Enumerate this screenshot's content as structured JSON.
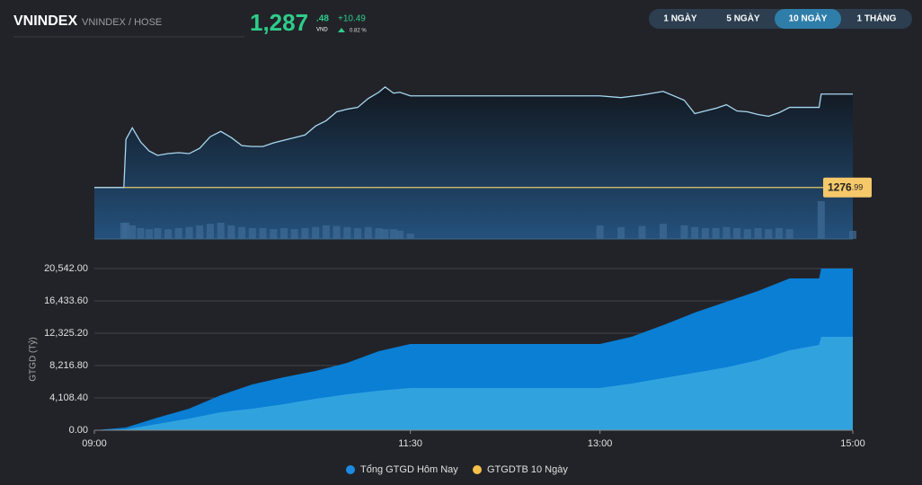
{
  "header": {
    "symbol": "VNINDEX",
    "exchange": "VNINDEX / HOSE",
    "price_int": "1,287",
    "price_dec": ".48",
    "currency": "VND",
    "change": "+10.49",
    "change_pct": "0.82 %"
  },
  "tabs": [
    "1 NGÀY",
    "5 NGÀY",
    "10 NGÀY",
    "1 THÁNG"
  ],
  "active_tab": 2,
  "chart_data": [
    {
      "type": "line",
      "xlim": [
        "09:00",
        "15:00"
      ],
      "ylim": [
        1271.2,
        1290.0
      ],
      "reference": 1276.99,
      "reference_label_parts": [
        "1276",
        ".99"
      ],
      "reference_color": "#e8c86a",
      "x": [
        "09:14",
        "09:15",
        "09:18",
        "09:22",
        "09:26",
        "09:30",
        "09:35",
        "09:40",
        "09:45",
        "09:50",
        "09:55",
        "10:00",
        "10:05",
        "10:10",
        "10:15",
        "10:20",
        "10:25",
        "10:30",
        "10:35",
        "10:40",
        "10:45",
        "10:50",
        "10:55",
        "11:00",
        "11:05",
        "11:10",
        "11:15",
        "11:18",
        "11:22",
        "11:25",
        "11:30",
        "13:00",
        "13:10",
        "13:20",
        "13:30",
        "13:40",
        "13:45",
        "13:50",
        "13:55",
        "14:00",
        "14:05",
        "14:10",
        "14:15",
        "14:20",
        "14:25",
        "14:30",
        "14:44",
        "14:45",
        "15:00"
      ],
      "series": [
        {
          "color": "#a8d8f0",
          "values": [
            1276.99,
            1282.4,
            1283.7,
            1282.1,
            1281.1,
            1280.6,
            1280.8,
            1280.9,
            1280.8,
            1281.4,
            1282.7,
            1283.3,
            1282.6,
            1281.7,
            1281.6,
            1281.6,
            1282.0,
            1282.3,
            1282.6,
            1282.9,
            1283.9,
            1284.5,
            1285.5,
            1285.8,
            1286.0,
            1287.0,
            1287.7,
            1288.3,
            1287.6,
            1287.7,
            1287.3,
            1287.3,
            1287.1,
            1287.4,
            1287.8,
            1286.8,
            1285.3,
            1285.6,
            1285.9,
            1286.3,
            1285.6,
            1285.5,
            1285.2,
            1285.0,
            1285.4,
            1286.0,
            1286.0,
            1287.5,
            1287.5
          ]
        }
      ],
      "volume": {
        "color": "#3d6a94",
        "ylim": [
          0,
          100
        ],
        "values": [
          30,
          30,
          25,
          20,
          18,
          20,
          18,
          20,
          22,
          25,
          28,
          30,
          25,
          22,
          20,
          20,
          18,
          20,
          18,
          20,
          22,
          25,
          24,
          22,
          20,
          22,
          20,
          18,
          18,
          15,
          10,
          25,
          22,
          24,
          28,
          25,
          22,
          20,
          20,
          22,
          20,
          18,
          20,
          18,
          20,
          18,
          0,
          70,
          15
        ]
      }
    },
    {
      "type": "area",
      "ylabel": "GTGD (Tỷ)",
      "xlim": [
        "09:00",
        "15:00"
      ],
      "xticks": [
        "09:00",
        "11:30",
        "13:00",
        "15:00"
      ],
      "ylim": [
        0,
        20542
      ],
      "yticks": [
        {
          "value": 0,
          "label": "0.00"
        },
        {
          "value": 4108.4,
          "label": "4,108.40"
        },
        {
          "value": 8216.8,
          "label": "8,216.80"
        },
        {
          "value": 12325.2,
          "label": "12,325.20"
        },
        {
          "value": 16433.6,
          "label": "16,433.60"
        },
        {
          "value": 20542,
          "label": "20,542.00"
        }
      ],
      "grid": true,
      "x": [
        "09:00",
        "09:15",
        "09:30",
        "09:45",
        "10:00",
        "10:15",
        "10:30",
        "10:45",
        "11:00",
        "11:15",
        "11:30",
        "13:00",
        "13:15",
        "13:30",
        "13:45",
        "14:00",
        "14:15",
        "14:30",
        "14:44",
        "14:45",
        "15:00"
      ],
      "series": [
        {
          "name": "Tổng GTGD Hôm Nay",
          "color": "#0a7fd4",
          "legend_color": "#1a8be0",
          "values": [
            0,
            342,
            1598,
            2739,
            4450,
            5819,
            6732,
            7530,
            8557,
            10041,
            10954,
            10954,
            11867,
            13350,
            14948,
            16317,
            17686,
            19284,
            19284,
            20542,
            20542
          ]
        },
        {
          "name": "GTGDTB 10 Ngày",
          "color": "#30a3df",
          "legend_color": "#f5c04a",
          "values": [
            0,
            114,
            799,
            1483,
            2282,
            2739,
            3309,
            3994,
            4564,
            5020,
            5363,
            5363,
            5933,
            6618,
            7302,
            7987,
            8900,
            10155,
            10840,
            11867,
            11867
          ]
        }
      ]
    }
  ]
}
